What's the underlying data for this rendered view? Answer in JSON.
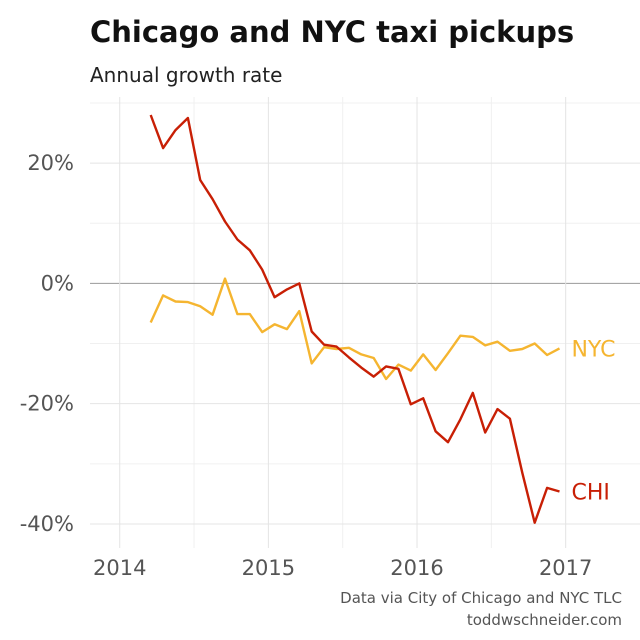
{
  "title": "Chicago and NYC taxi pickups",
  "subtitle": "Annual growth rate",
  "caption": [
    "Data via City of Chicago and NYC TLC",
    "toddwschneider.com"
  ],
  "colors": {
    "CHI": "#c81f05",
    "NYC": "#f5b530"
  },
  "chart_data": {
    "type": "line",
    "title": "Chicago and NYC taxi pickups",
    "subtitle": "Annual growth rate",
    "xlabel": "",
    "ylabel": "",
    "xlim": [
      2013.8,
      2017.5
    ],
    "ylim": [
      -44,
      31
    ],
    "x_ticks": [
      2014,
      2015,
      2016,
      2017
    ],
    "x_tick_labels": [
      "2014",
      "2015",
      "2016",
      "2017"
    ],
    "y_ticks": [
      -40,
      -20,
      0,
      20
    ],
    "y_tick_labels": [
      "-40%",
      "-20%",
      "0%",
      "20%"
    ],
    "grid": true,
    "legend": "direct labels at line ends",
    "x": [
      "2014-03",
      "2014-04",
      "2014-05",
      "2014-06",
      "2014-07",
      "2014-08",
      "2014-09",
      "2014-10",
      "2014-11",
      "2014-12",
      "2015-01",
      "2015-02",
      "2015-03",
      "2015-04",
      "2015-05",
      "2015-06",
      "2015-07",
      "2015-08",
      "2015-09",
      "2015-10",
      "2015-11",
      "2015-12",
      "2016-01",
      "2016-02",
      "2016-03",
      "2016-04",
      "2016-05",
      "2016-06",
      "2016-07",
      "2016-08",
      "2016-09",
      "2016-10",
      "2016-11",
      "2016-12"
    ],
    "series": [
      {
        "name": "CHI",
        "values": [
          28,
          22.5,
          25.5,
          27.5,
          17.2,
          14,
          10.3,
          7.3,
          5.5,
          2.3,
          -2.3,
          -1,
          0,
          -8,
          -10.2,
          -10.5,
          -12.3,
          -14,
          -15.5,
          -13.8,
          -14.2,
          -20.1,
          -19.1,
          -24.6,
          -26.4,
          -22.6,
          -18.2,
          -24.8,
          -20.9,
          -22.5,
          -31.5,
          -39.8,
          -34,
          -34.6
        ]
      },
      {
        "name": "NYC",
        "values": [
          -6.5,
          -2,
          -3,
          -3.1,
          -3.8,
          -5.2,
          0.8,
          -5.1,
          -5.1,
          -8.1,
          -6.8,
          -7.6,
          -4.6,
          -13.3,
          -10.6,
          -10.9,
          -10.7,
          -11.8,
          -12.4,
          -15.9,
          -13.5,
          -14.5,
          -11.8,
          -14.4,
          -11.6,
          -8.7,
          -8.9,
          -10.3,
          -9.7,
          -11.2,
          -10.9,
          -10,
          -11.9,
          -10.8
        ]
      }
    ]
  }
}
